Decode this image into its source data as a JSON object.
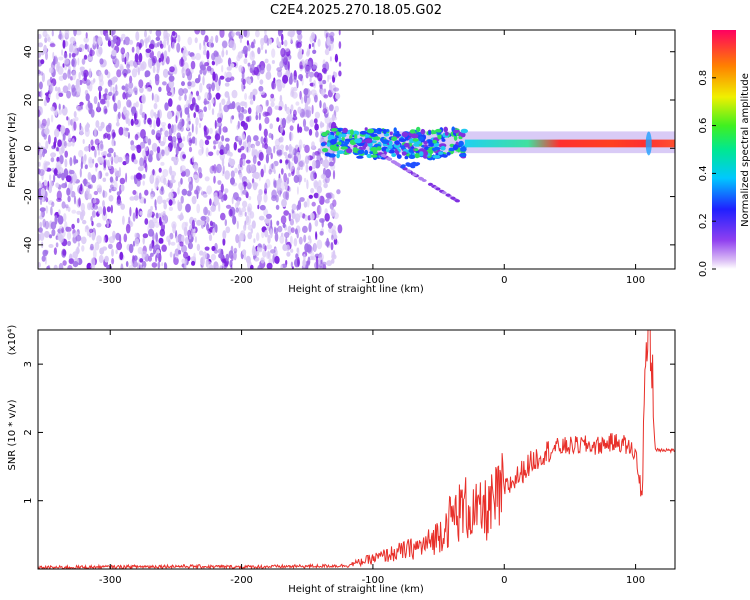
{
  "title": "C2E4.2025.270.18.05.G02",
  "colors": {
    "snr_line": "#e8302a",
    "axis": "#000000",
    "speckle_light": "#d9c8f5",
    "speckle_mid": "#a070e8",
    "speckle_dark": "#7a20e0"
  },
  "colorbar": {
    "label": "Normalized spectral amplitude",
    "ticks": [
      "0.0",
      "0.2",
      "0.4",
      "0.6",
      "0.8"
    ],
    "range": [
      0,
      1
    ]
  },
  "chart_data": [
    {
      "type": "heatmap",
      "title": "C2E4.2025.270.18.05.G02",
      "xlabel": "Height of straight line (km)",
      "ylabel": "Frequency (Hz)",
      "xlim": [
        -355,
        130
      ],
      "ylim": [
        -50,
        49
      ],
      "xticks": [
        "-300",
        "-200",
        "-100",
        "0",
        "100"
      ],
      "yticks": [
        "-40",
        "-20",
        "0",
        "20",
        "40"
      ],
      "colorbar_label": "Normalized spectral amplitude",
      "description_values": {
        "noise_region_x": [
          -355,
          -135
        ],
        "signal_line_freq_hz": 2,
        "signal_start_x": -140,
        "branch_to_x": -35,
        "branch_to_freq_hz": -22
      }
    },
    {
      "type": "line",
      "xlabel": "Height of straight line (km)",
      "ylabel": "SNR (10 * v/v)",
      "y_multiplier": "(x10⁴)",
      "xlim": [
        -355,
        130
      ],
      "ylim": [
        0,
        35000
      ],
      "xticks": [
        "-300",
        "-200",
        "-100",
        "0",
        "100"
      ],
      "yticks": [
        "1",
        "2",
        "3"
      ],
      "series": [
        {
          "x": [
            -355,
            -300,
            -250,
            -200,
            -150,
            -120,
            -100,
            -80,
            -60,
            -50,
            -40,
            -30,
            -20,
            -10,
            0,
            10,
            20,
            30,
            40,
            50,
            60,
            70,
            80,
            90,
            100,
            105,
            110,
            115,
            120,
            130
          ],
          "y": [
            200,
            300,
            400,
            300,
            400,
            500,
            1500,
            2500,
            3500,
            5000,
            7500,
            9000,
            8000,
            9000,
            11500,
            13500,
            15500,
            17000,
            17800,
            18000,
            18200,
            18000,
            18500,
            18500,
            17000,
            10500,
            33000,
            17500,
            17500,
            17300
          ]
        }
      ]
    }
  ]
}
